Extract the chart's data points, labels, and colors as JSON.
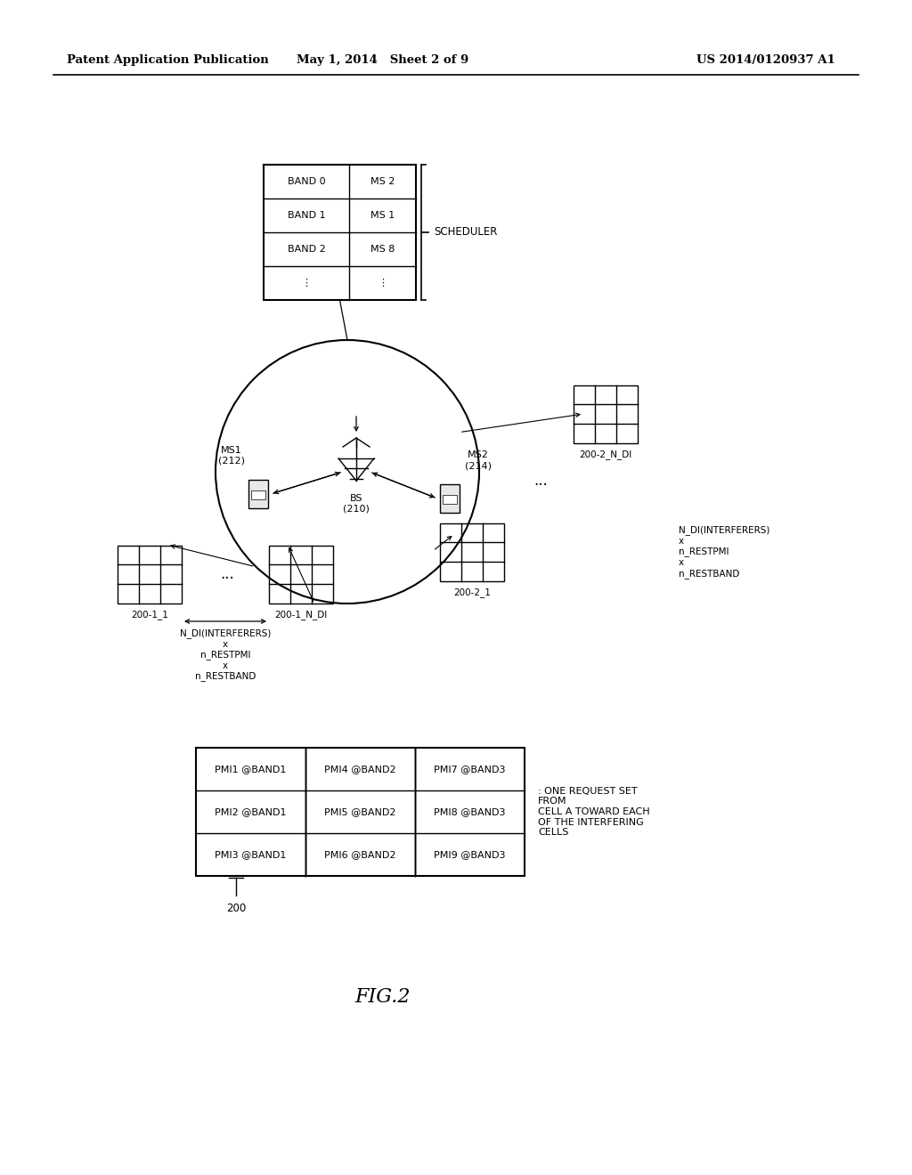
{
  "header_left": "Patent Application Publication",
  "header_mid": "May 1, 2014   Sheet 2 of 9",
  "header_right": "US 2014/0120937 A1",
  "scheduler_rows": [
    [
      "BAND 0",
      "MS 2"
    ],
    [
      "BAND 1",
      "MS 1"
    ],
    [
      "BAND 2",
      "MS 8"
    ],
    [
      "⋮",
      "⋮"
    ]
  ],
  "scheduler_label": "SCHEDULER",
  "bs_label": "BS\n(210)",
  "ms1_label": "MS1\n(212)",
  "ms2_label": "MS2\n(214)",
  "fig_label": "FIG.2",
  "bottom_cells": [
    [
      "PMI1 @BAND1",
      "PMI4 @BAND2",
      "PMI7 @BAND3"
    ],
    [
      "PMI2 @BAND1",
      "PMI5 @BAND2",
      "PMI8 @BAND3"
    ],
    [
      "PMI3 @BAND1",
      "PMI6 @BAND2",
      "PMI9 @BAND3"
    ]
  ],
  "bottom_label": "200",
  "annotation": ": ONE REQUEST SET\nFROM\nCELL A TOWARD EACH\nOF THE INTERFERING\nCELLS",
  "dim_label": "N_DI(INTERFERERS)\nx\nn_RESTPMI\nx\nn_RESTBAND",
  "bg_color": "#ffffff"
}
